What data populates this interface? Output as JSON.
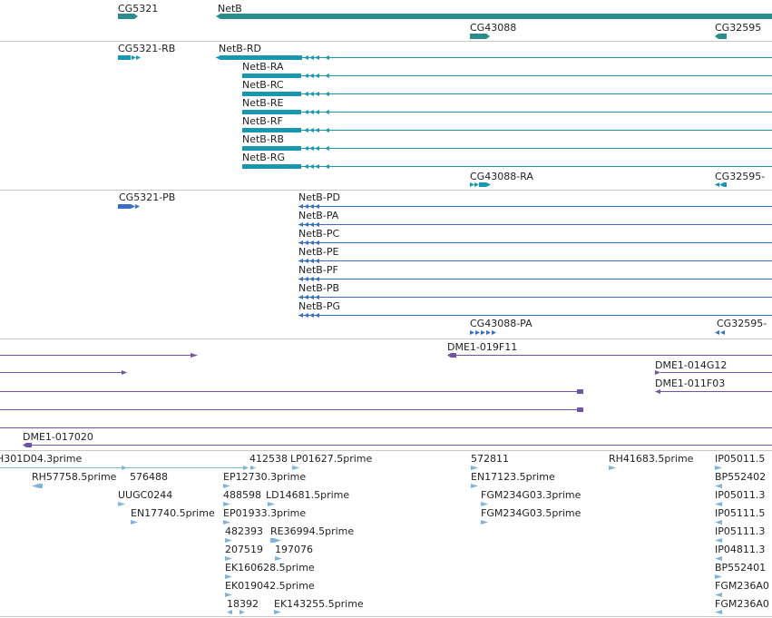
{
  "colors": {
    "gene": "#2a8c8c",
    "transcript_rna": "#1797b0",
    "transcript_protein": "#3a6fc6",
    "cdna": "#7152a6",
    "est": "#7fb4d8"
  },
  "tracks": {
    "genes": {
      "labels": [
        "CG5321",
        "NetB",
        "CG43088",
        "CG32595"
      ]
    },
    "rna": {
      "labels": [
        "CG5321-RB",
        "NetB-RD",
        "NetB-RA",
        "NetB-RC",
        "NetB-RE",
        "NetB-RF",
        "NetB-RB",
        "NetB-RG",
        "CG43088-RA",
        "CG32595-"
      ]
    },
    "protein": {
      "labels": [
        "CG5321-PB",
        "NetB-PD",
        "NetB-PA",
        "NetB-PC",
        "NetB-PE",
        "NetB-PF",
        "NetB-PB",
        "NetB-PG",
        "CG43088-PA",
        "CG32595-"
      ]
    },
    "cdna": {
      "labels": [
        "DME1-019F11",
        "DME1-014G12",
        "DME1-011F03",
        "DME1-017020"
      ]
    },
    "est": {
      "labels": [
        "H301D04.3prime",
        "412538",
        "LP01627.5prime",
        "572811",
        "RH41683.5prime",
        "IP05011.5",
        "RH57758.5prime",
        "576488",
        "EP12730.3prime",
        "EN17123.5prime",
        "BP552402",
        "UUGC0244",
        "488598",
        "LD14681.5prime",
        "FGM234G03.3prime",
        "IP05011.3",
        "EN17740.5prime",
        "EP01933.3prime",
        "FGM234G03.5prime",
        "IP05111.5",
        "482393",
        "RE36994.5prime",
        "IP05111.3",
        "207519",
        "197076",
        "IP04811.3",
        "EK160628.5prime",
        "BP552401",
        "EK019042.5prime",
        "FGM236A0",
        "18392",
        "EK143255.5prime",
        "FGM236A0"
      ]
    }
  }
}
